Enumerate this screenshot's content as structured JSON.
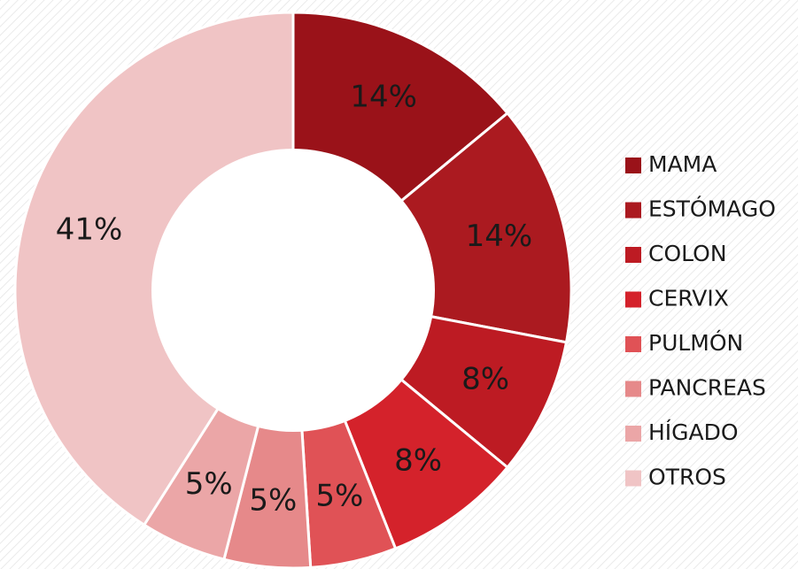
{
  "chart_data": {
    "type": "donut",
    "categories": [
      "MAMA",
      "ESTÓMAGO",
      "COLON",
      "CERVIX",
      "PULMÓN",
      "PANCREAS",
      "HÍGADO",
      "OTROS"
    ],
    "values": [
      14,
      14,
      8,
      8,
      5,
      5,
      5,
      41
    ],
    "value_labels": [
      "14%",
      "14%",
      "8%",
      "8%",
      "5%",
      "5%",
      "5%",
      "41%"
    ],
    "colors": [
      "#9a1219",
      "#ab1a20",
      "#bd1b23",
      "#d4222b",
      "#e05256",
      "#e6898a",
      "#eba6a7",
      "#f0c4c5"
    ],
    "legend": "right"
  }
}
